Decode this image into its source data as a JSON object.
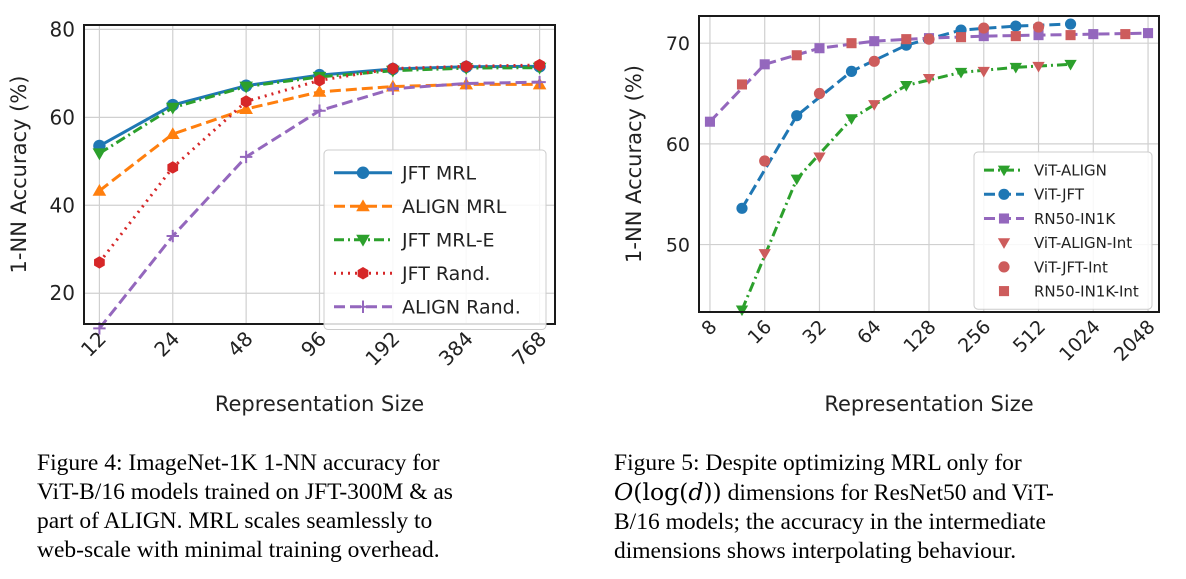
{
  "chart_data": [
    {
      "type": "line",
      "xlabel": "Representation Size",
      "ylabel": "1-NN Accuracy (%)",
      "x_scale": "log2",
      "x": [
        12,
        24,
        48,
        96,
        192,
        384,
        768
      ],
      "x_tick_labels": [
        "12",
        "24",
        "48",
        "96",
        "192",
        "384",
        "768"
      ],
      "y_ticks": [
        20,
        40,
        60,
        80
      ],
      "ylim": [
        13,
        81
      ],
      "grid": true,
      "legend_position": "lower-right",
      "series": [
        {
          "name": "JFT MRL",
          "color": "#1f77b4",
          "dash": "solid",
          "marker": "circle",
          "x": [
            12,
            24,
            48,
            96,
            192,
            384,
            768
          ],
          "values": [
            53.5,
            62.8,
            67.2,
            69.6,
            71.0,
            71.5,
            71.6
          ]
        },
        {
          "name": "ALIGN MRL",
          "color": "#ff7f0e",
          "dash": "dashed",
          "marker": "triangle-up",
          "x": [
            12,
            24,
            48,
            96,
            192,
            384,
            768
          ],
          "values": [
            43.3,
            56.2,
            61.9,
            65.8,
            67.0,
            67.5,
            67.5
          ]
        },
        {
          "name": "JFT MRL-E",
          "color": "#2ca02c",
          "dash": "dashdot",
          "marker": "triangle-down",
          "x": [
            12,
            24,
            48,
            96,
            192,
            384,
            768
          ],
          "values": [
            51.8,
            62.2,
            67.0,
            69.2,
            70.6,
            71.2,
            71.3
          ]
        },
        {
          "name": "JFT Rand.",
          "color": "#d62728",
          "dash": "dotted",
          "marker": "hexagon",
          "x": [
            12,
            24,
            48,
            96,
            192,
            384,
            768
          ],
          "values": [
            27.0,
            48.6,
            63.6,
            68.4,
            71.1,
            71.6,
            71.9
          ]
        },
        {
          "name": "ALIGN Rand.",
          "color": "#9467bd",
          "dash": "dashed",
          "marker": "plus",
          "x": [
            12,
            24,
            48,
            96,
            192,
            384,
            768
          ],
          "values": [
            12.0,
            33.0,
            51.0,
            61.5,
            66.5,
            67.7,
            68.0
          ]
        }
      ]
    },
    {
      "type": "line",
      "xlabel": "Representation Size",
      "ylabel": "1-NN Accuracy (%)",
      "x_scale": "log2",
      "x_ticks": [
        8,
        16,
        32,
        64,
        128,
        256,
        512,
        1024,
        2048
      ],
      "x_tick_labels": [
        "8",
        "16",
        "32",
        "64",
        "128",
        "256",
        "512",
        "1024",
        "2048"
      ],
      "y_ticks": [
        50,
        60,
        70
      ],
      "ylim": [
        43.3,
        72.7
      ],
      "grid": true,
      "legend_position": "lower-right",
      "series": [
        {
          "name": "ViT-ALIGN",
          "color": "#2ca02c",
          "dash": "dashdot",
          "marker": "triangle-down",
          "x": [
            12,
            24,
            48,
            96,
            192,
            384,
            768
          ],
          "values": [
            43.5,
            56.5,
            62.5,
            65.8,
            67.1,
            67.6,
            67.9
          ]
        },
        {
          "name": "ViT-JFT",
          "color": "#1f77b4",
          "dash": "dashed",
          "marker": "circle",
          "x": [
            12,
            24,
            48,
            96,
            192,
            384,
            768
          ],
          "values": [
            53.6,
            62.8,
            67.2,
            69.8,
            71.3,
            71.7,
            71.9
          ]
        },
        {
          "name": "RN50-IN1K",
          "color": "#9467bd",
          "dash": "dashed",
          "marker": "square",
          "x": [
            8,
            16,
            32,
            64,
            128,
            256,
            512,
            1024,
            2048
          ],
          "values": [
            62.2,
            67.9,
            69.5,
            70.2,
            70.5,
            70.7,
            70.8,
            70.9,
            71.0
          ]
        },
        {
          "name": "ViT-ALIGN-Int",
          "color": "#cd5c5c",
          "dash": "none",
          "marker": "triangle-down",
          "x": [
            16,
            32,
            64,
            128,
            256,
            512
          ],
          "values": [
            49.1,
            58.7,
            63.9,
            66.5,
            67.2,
            67.7
          ]
        },
        {
          "name": "ViT-JFT-Int",
          "color": "#cd5c5c",
          "dash": "none",
          "marker": "circle",
          "x": [
            16,
            32,
            64,
            128,
            256,
            512
          ],
          "values": [
            58.3,
            65.0,
            68.2,
            70.4,
            71.5,
            71.6
          ]
        },
        {
          "name": "RN50-IN1K-Int",
          "color": "#cd5c5c",
          "dash": "none",
          "marker": "square",
          "x": [
            12,
            24,
            48,
            96,
            192,
            384,
            768,
            1536
          ],
          "values": [
            65.9,
            68.8,
            70.0,
            70.4,
            70.6,
            70.7,
            70.8,
            70.9
          ]
        }
      ]
    }
  ],
  "captions": {
    "fig4": {
      "label": "Figure 4:",
      "lines": [
        "ImageNet-1K 1-NN accuracy for",
        "ViT-B/16 models trained on JFT-300M & as",
        "part of ALIGN. MRL scales seamlessly to",
        "web-scale with minimal training overhead."
      ]
    },
    "fig5": {
      "label": "Figure 5:",
      "line1": "Despite optimizing MRL only for",
      "math_o": "O",
      "math_rest": "(log(",
      "math_d": "d",
      "math_close": "))",
      "line2_rest": " dimensions for ResNet50 and ViT-",
      "line3": "B/16 models; the accuracy in the intermediate",
      "line4": "dimensions shows interpolating behaviour."
    }
  }
}
